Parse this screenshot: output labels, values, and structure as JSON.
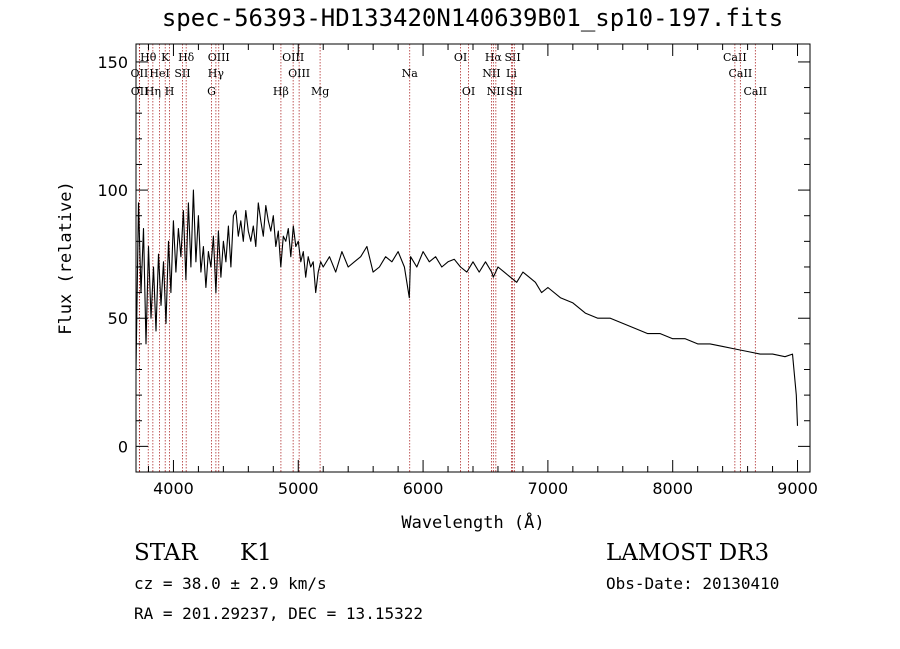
{
  "title": "spec-56393-HD133420N140639B01_sp10-197.fits",
  "chart_data": {
    "type": "line",
    "title": "spec-56393-HD133420N140639B01_sp10-197.fits",
    "xlabel": "Wavelength (Å)",
    "ylabel": "Flux (relative)",
    "xlim": [
      3700,
      9100
    ],
    "ylim": [
      -10,
      157
    ],
    "xticks": [
      4000,
      5000,
      6000,
      7000,
      8000,
      9000
    ],
    "yticks": [
      0,
      50,
      100,
      150
    ],
    "series": [
      {
        "name": "flux",
        "x": [
          3700,
          3720,
          3740,
          3760,
          3780,
          3800,
          3820,
          3840,
          3860,
          3880,
          3900,
          3920,
          3940,
          3960,
          3980,
          4000,
          4020,
          4040,
          4060,
          4080,
          4100,
          4120,
          4140,
          4160,
          4180,
          4200,
          4220,
          4240,
          4260,
          4280,
          4300,
          4320,
          4340,
          4360,
          4380,
          4400,
          4420,
          4440,
          4460,
          4480,
          4500,
          4520,
          4540,
          4560,
          4580,
          4600,
          4620,
          4640,
          4660,
          4680,
          4700,
          4720,
          4740,
          4760,
          4780,
          4800,
          4820,
          4840,
          4860,
          4880,
          4900,
          4920,
          4940,
          4960,
          4980,
          5000,
          5020,
          5040,
          5060,
          5080,
          5100,
          5120,
          5140,
          5160,
          5180,
          5200,
          5250,
          5300,
          5350,
          5400,
          5450,
          5500,
          5550,
          5600,
          5650,
          5700,
          5750,
          5800,
          5850,
          5890,
          5900,
          5950,
          6000,
          6050,
          6100,
          6150,
          6200,
          6250,
          6300,
          6350,
          6400,
          6450,
          6500,
          6550,
          6563,
          6600,
          6650,
          6700,
          6750,
          6800,
          6850,
          6900,
          6950,
          7000,
          7100,
          7200,
          7300,
          7400,
          7500,
          7600,
          7700,
          7800,
          7900,
          8000,
          8100,
          8200,
          8300,
          8400,
          8500,
          8600,
          8700,
          8800,
          8900,
          8960,
          8990,
          9000
        ],
        "y": [
          30,
          95,
          60,
          85,
          40,
          78,
          50,
          70,
          45,
          75,
          55,
          72,
          48,
          80,
          60,
          88,
          68,
          85,
          74,
          92,
          65,
          95,
          70,
          100,
          72,
          90,
          68,
          78,
          62,
          76,
          70,
          82,
          60,
          84,
          66,
          80,
          72,
          86,
          70,
          90,
          92,
          82,
          88,
          80,
          92,
          84,
          80,
          86,
          78,
          95,
          88,
          82,
          94,
          88,
          84,
          90,
          78,
          84,
          70,
          82,
          80,
          85,
          74,
          86,
          78,
          80,
          72,
          76,
          66,
          74,
          70,
          72,
          60,
          68,
          72,
          70,
          74,
          68,
          76,
          70,
          72,
          74,
          78,
          68,
          70,
          74,
          72,
          76,
          70,
          58,
          74,
          70,
          76,
          72,
          74,
          70,
          72,
          73,
          70,
          68,
          72,
          68,
          72,
          68,
          66,
          70,
          68,
          66,
          64,
          68,
          66,
          64,
          60,
          62,
          58,
          56,
          52,
          50,
          50,
          48,
          46,
          44,
          44,
          42,
          42,
          40,
          40,
          39,
          38,
          37,
          36,
          36,
          35,
          36,
          20,
          8
        ]
      }
    ],
    "lines": [
      {
        "label": "Hθ",
        "wl": 3798,
        "row": 1
      },
      {
        "label": "K",
        "wl": 3934,
        "row": 1
      },
      {
        "label": "Hδ",
        "wl": 4102,
        "row": 1
      },
      {
        "label": "OIII",
        "wl": 4363,
        "row": 1
      },
      {
        "label": "OIII",
        "wl": 4959,
        "row": 1
      },
      {
        "label": "OI",
        "wl": 6300,
        "row": 1
      },
      {
        "label": "Hα",
        "wl": 6563,
        "row": 1
      },
      {
        "label": "SII",
        "wl": 6717,
        "row": 1
      },
      {
        "label": "CaII",
        "wl": 8498,
        "row": 1
      },
      {
        "label": "OII",
        "wl": 3727,
        "row": 2
      },
      {
        "label": "HeI",
        "wl": 3889,
        "row": 2
      },
      {
        "label": "SII",
        "wl": 4072,
        "row": 2
      },
      {
        "label": "Hγ",
        "wl": 4340,
        "row": 2
      },
      {
        "label": "OIII",
        "wl": 5007,
        "row": 2
      },
      {
        "label": "Na",
        "wl": 5893,
        "row": 2
      },
      {
        "label": "NII",
        "wl": 6548,
        "row": 2
      },
      {
        "label": "Li",
        "wl": 6708,
        "row": 2
      },
      {
        "label": "CaII",
        "wl": 8542,
        "row": 2
      },
      {
        "label": "OII",
        "wl": 3729,
        "row": 3
      },
      {
        "label": "Hη",
        "wl": 3835,
        "row": 3
      },
      {
        "label": "H",
        "wl": 3969,
        "row": 3
      },
      {
        "label": "G",
        "wl": 4305,
        "row": 3
      },
      {
        "label": "Hβ",
        "wl": 4861,
        "row": 3
      },
      {
        "label": "Mg",
        "wl": 5175,
        "row": 3
      },
      {
        "label": "OI",
        "wl": 6364,
        "row": 3
      },
      {
        "label": "NII",
        "wl": 6583,
        "row": 3
      },
      {
        "label": "SII",
        "wl": 6731,
        "row": 3
      },
      {
        "label": "CaII",
        "wl": 8662,
        "row": 3
      }
    ]
  },
  "info": {
    "class": "STAR",
    "subclass": "K1",
    "survey": "LAMOST DR3",
    "cz": "cz = 38.0 ± 2.9 km/s",
    "obsdate": "Obs-Date: 20130410",
    "radec": "RA = 201.29237, DEC =  13.15322"
  }
}
